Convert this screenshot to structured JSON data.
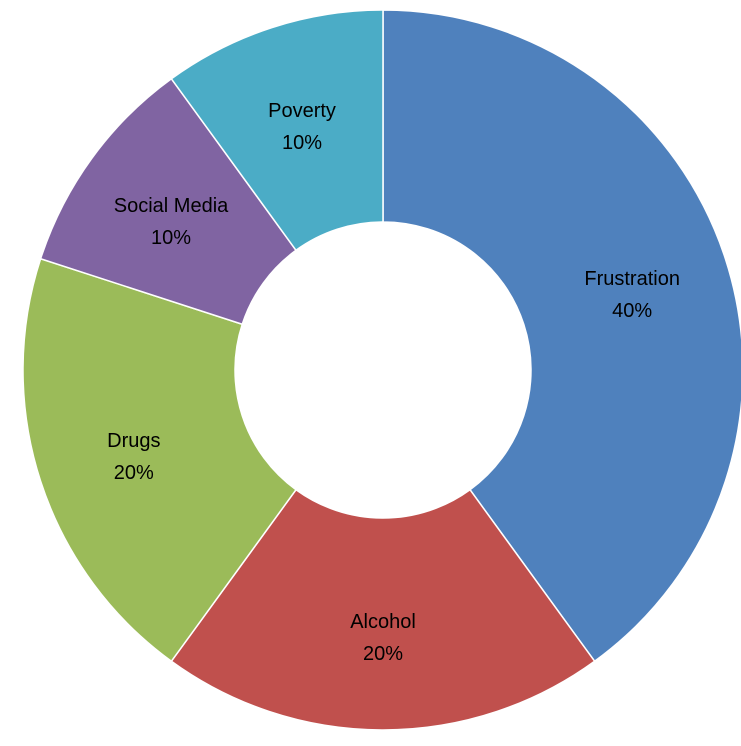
{
  "chart_data": {
    "type": "pie",
    "variant": "donut",
    "title": "",
    "slices": [
      {
        "label": "Frustration",
        "value": 40,
        "value_label": "40%",
        "color": "#4F81BD"
      },
      {
        "label": "Alcohol",
        "value": 20,
        "value_label": "20%",
        "color": "#C0504D"
      },
      {
        "label": "Drugs",
        "value": 20,
        "value_label": "20%",
        "color": "#9BBB59"
      },
      {
        "label": "Social Media",
        "value": 10,
        "value_label": "10%",
        "color": "#8064A2"
      },
      {
        "label": "Poverty",
        "value": 10,
        "value_label": "10%",
        "color": "#4BACC6"
      }
    ],
    "start": "top",
    "direction": "clockwise",
    "legend": "none"
  }
}
